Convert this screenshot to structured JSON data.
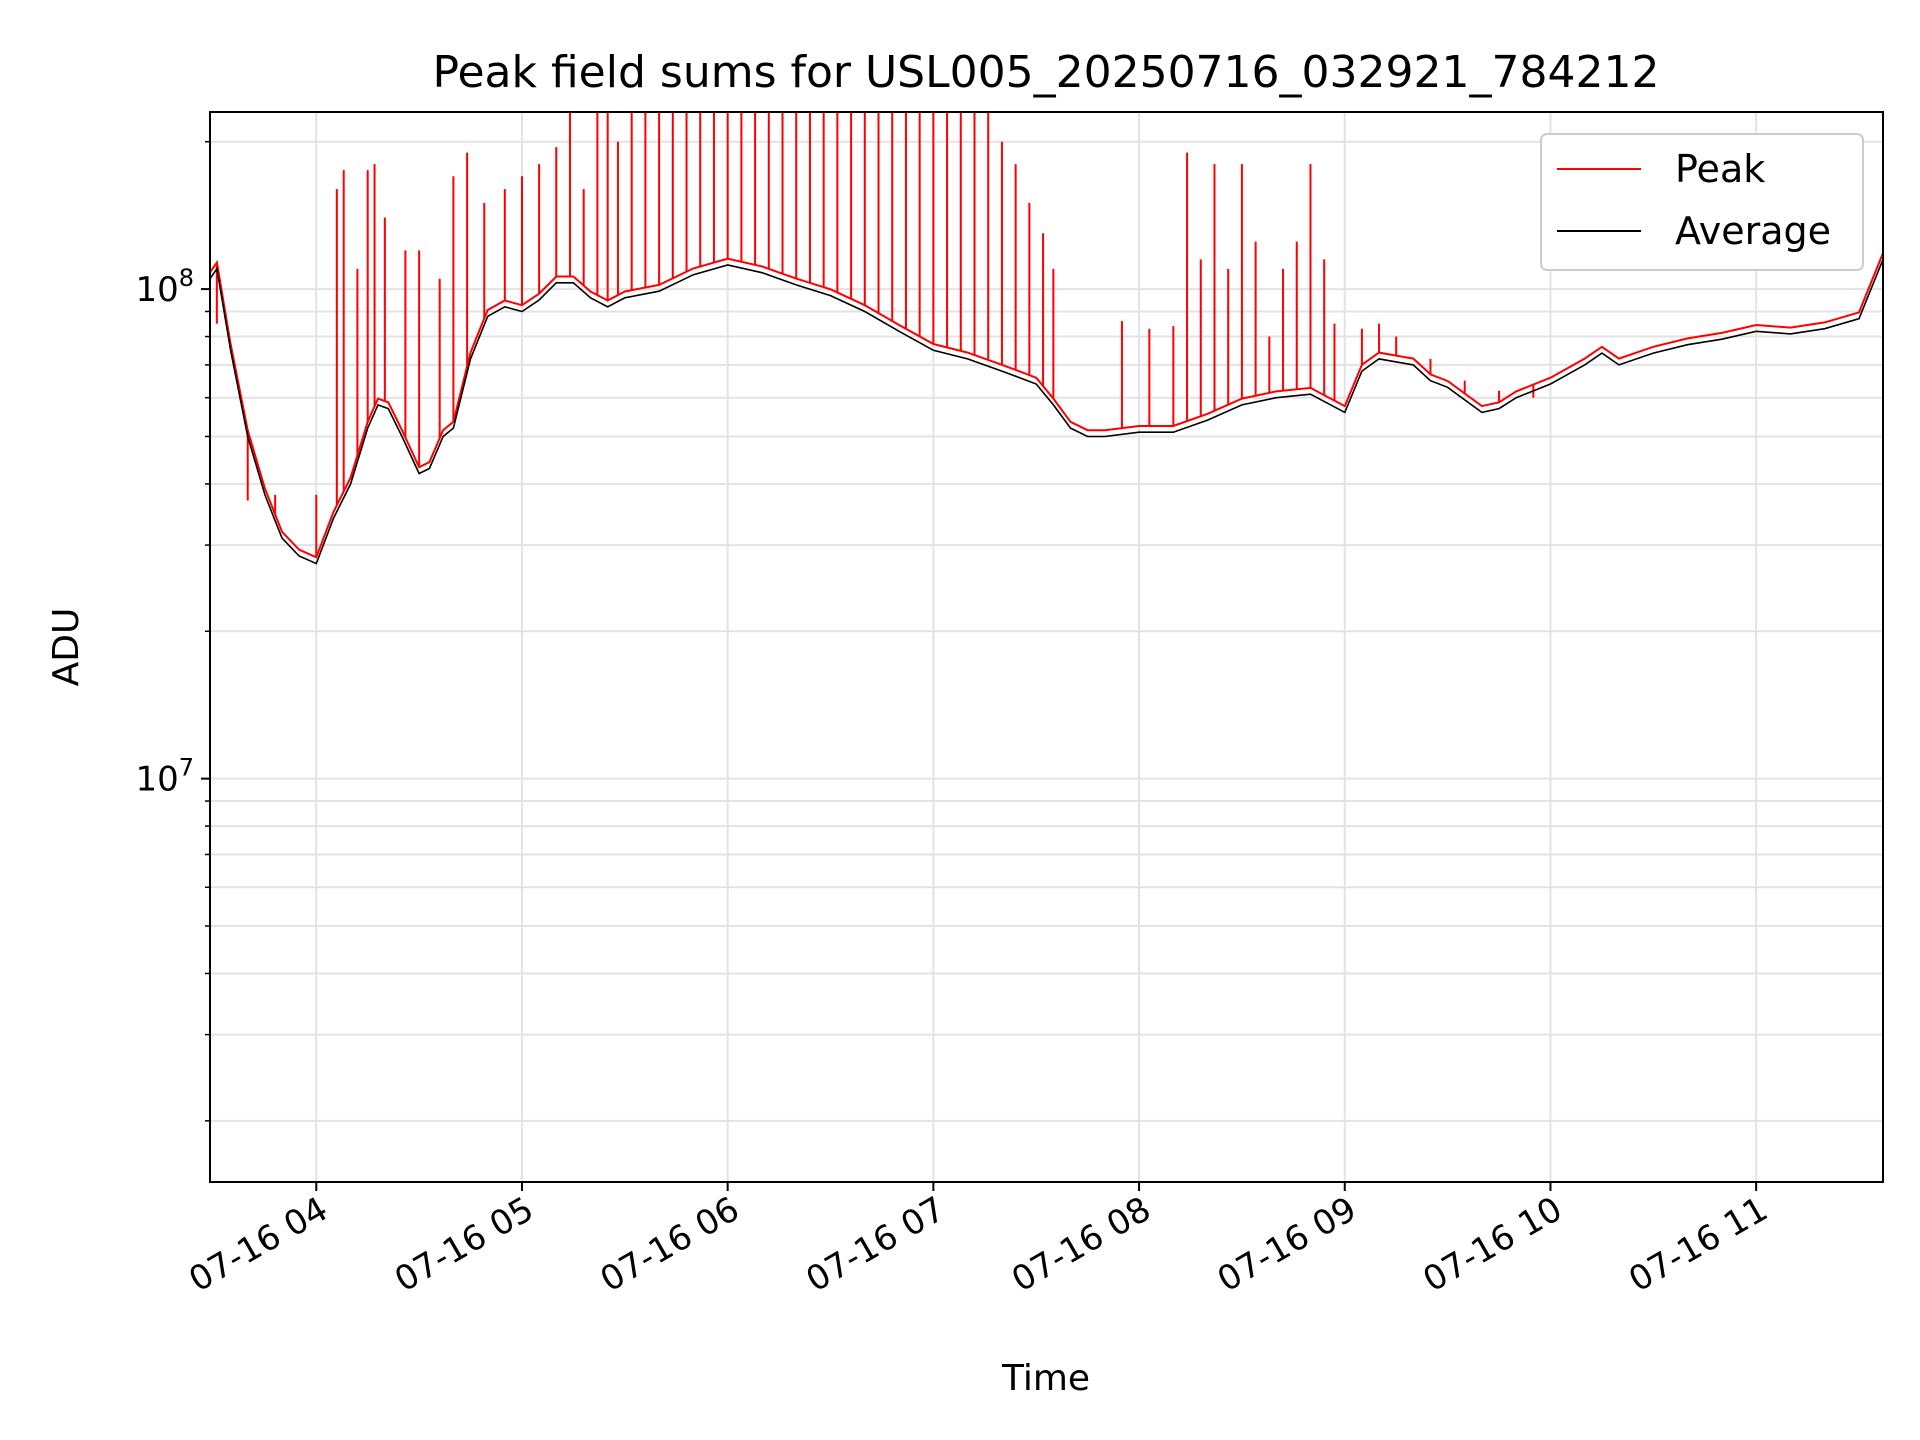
{
  "chart_data": {
    "type": "line",
    "title": "Peak field sums for USL005_20250716_032921_784212",
    "xlabel": "Time",
    "ylabel": "ADU",
    "yscale": "log",
    "ylim": [
      1500000,
      230000000
    ],
    "xlim": [
      "07-16 03:29",
      "07-16 11:37"
    ],
    "grid": true,
    "legend": "top-right",
    "x_ticks": [
      "07-16 04",
      "07-16 05",
      "07-16 06",
      "07-16 07",
      "07-16 08",
      "07-16 09",
      "07-16 10",
      "07-16 11"
    ],
    "y_tick_major": [
      {
        "value": 10000000,
        "base": "10",
        "exp": "7"
      },
      {
        "value": 100000000,
        "base": "10",
        "exp": "8"
      }
    ],
    "y_minor_ticks": [
      2000000,
      3000000,
      4000000,
      5000000,
      6000000,
      7000000,
      8000000,
      9000000,
      20000000,
      30000000,
      40000000,
      50000000,
      60000000,
      70000000,
      80000000,
      90000000,
      200000000
    ],
    "series": [
      {
        "name": "Average",
        "color": "#000000",
        "x": [
          "07-16 03:29",
          "07-16 03:31",
          "07-16 03:35",
          "07-16 03:40",
          "07-16 03:45",
          "07-16 03:50",
          "07-16 03:55",
          "07-16 04:00",
          "07-16 04:05",
          "07-16 04:10",
          "07-16 04:15",
          "07-16 04:18",
          "07-16 04:21",
          "07-16 04:25",
          "07-16 04:30",
          "07-16 04:33",
          "07-16 04:37",
          "07-16 04:40",
          "07-16 04:45",
          "07-16 04:50",
          "07-16 04:55",
          "07-16 05:00",
          "07-16 05:05",
          "07-16 05:10",
          "07-16 05:15",
          "07-16 05:20",
          "07-16 05:25",
          "07-16 05:30",
          "07-16 05:40",
          "07-16 05:50",
          "07-16 06:00",
          "07-16 06:10",
          "07-16 06:20",
          "07-16 06:30",
          "07-16 06:40",
          "07-16 06:50",
          "07-16 07:00",
          "07-16 07:10",
          "07-16 07:20",
          "07-16 07:30",
          "07-16 07:35",
          "07-16 07:40",
          "07-16 07:45",
          "07-16 07:50",
          "07-16 08:00",
          "07-16 08:10",
          "07-16 08:20",
          "07-16 08:30",
          "07-16 08:40",
          "07-16 08:50",
          "07-16 09:00",
          "07-16 09:05",
          "07-16 09:10",
          "07-16 09:15",
          "07-16 09:20",
          "07-16 09:25",
          "07-16 09:30",
          "07-16 09:40",
          "07-16 09:45",
          "07-16 09:50",
          "07-16 10:00",
          "07-16 10:10",
          "07-16 10:15",
          "07-16 10:20",
          "07-16 10:30",
          "07-16 10:40",
          "07-16 10:50",
          "07-16 11:00",
          "07-16 11:10",
          "07-16 11:20",
          "07-16 11:30",
          "07-16 11:37"
        ],
        "values": [
          105000000,
          110000000,
          75000000,
          50000000,
          38000000,
          31000000,
          28500000,
          27500000,
          34000000,
          40000000,
          52000000,
          58000000,
          57000000,
          50000000,
          42000000,
          43000000,
          50000000,
          52000000,
          72000000,
          88000000,
          92000000,
          90000000,
          95000000,
          103000000,
          103000000,
          96000000,
          92000000,
          96000000,
          99000000,
          107000000,
          112000000,
          108000000,
          102000000,
          97000000,
          90000000,
          82000000,
          75000000,
          72000000,
          68000000,
          64000000,
          58000000,
          52000000,
          50000000,
          50000000,
          51000000,
          51000000,
          54000000,
          58000000,
          60000000,
          61000000,
          56000000,
          68000000,
          72000000,
          71000000,
          70000000,
          65000000,
          63000000,
          56000000,
          57000000,
          60000000,
          64000000,
          70000000,
          74000000,
          70000000,
          74000000,
          77000000,
          79000000,
          82000000,
          81000000,
          83000000,
          87000000,
          115000000
        ]
      },
      {
        "name": "Peak",
        "color": "#ff0000",
        "x": [
          "07-16 03:31",
          "07-16 03:40",
          "07-16 03:48",
          "07-16 04:00",
          "07-16 04:06",
          "07-16 04:08",
          "07-16 04:12",
          "07-16 04:15",
          "07-16 04:17",
          "07-16 04:20",
          "07-16 04:26",
          "07-16 04:30",
          "07-16 04:36",
          "07-16 04:40",
          "07-16 04:44",
          "07-16 04:49",
          "07-16 04:55",
          "07-16 05:00",
          "07-16 05:05",
          "07-16 05:10",
          "07-16 05:14",
          "07-16 05:18",
          "07-16 05:22",
          "07-16 05:25",
          "07-16 05:28",
          "07-16 05:32",
          "07-16 05:36",
          "07-16 05:40",
          "07-16 05:44",
          "07-16 05:48",
          "07-16 05:52",
          "07-16 05:56",
          "07-16 06:00",
          "07-16 06:04",
          "07-16 06:08",
          "07-16 06:12",
          "07-16 06:16",
          "07-16 06:20",
          "07-16 06:24",
          "07-16 06:28",
          "07-16 06:32",
          "07-16 06:36",
          "07-16 06:40",
          "07-16 06:44",
          "07-16 06:48",
          "07-16 06:52",
          "07-16 06:56",
          "07-16 07:00",
          "07-16 07:04",
          "07-16 07:08",
          "07-16 07:12",
          "07-16 07:16",
          "07-16 07:20",
          "07-16 07:24",
          "07-16 07:28",
          "07-16 07:32",
          "07-16 07:35",
          "07-16 07:55",
          "07-16 08:03",
          "07-16 08:10",
          "07-16 08:14",
          "07-16 08:18",
          "07-16 08:22",
          "07-16 08:26",
          "07-16 08:30",
          "07-16 08:34",
          "07-16 08:38",
          "07-16 08:42",
          "07-16 08:46",
          "07-16 08:50",
          "07-16 08:54",
          "07-16 08:57",
          "07-16 09:05",
          "07-16 09:10",
          "07-16 09:15",
          "07-16 09:25",
          "07-16 09:35",
          "07-16 09:45",
          "07-16 09:55"
        ],
        "values": [
          85000000,
          37000000,
          38000000,
          38000000,
          160000000,
          175000000,
          110000000,
          175000000,
          180000000,
          140000000,
          120000000,
          120000000,
          105000000,
          170000000,
          190000000,
          150000000,
          160000000,
          170000000,
          180000000,
          195000000,
          230000000,
          160000000,
          230000000,
          230000000,
          200000000,
          230000000,
          230000000,
          230000000,
          230000000,
          230000000,
          230000000,
          230000000,
          230000000,
          230000000,
          230000000,
          230000000,
          230000000,
          230000000,
          230000000,
          230000000,
          230000000,
          230000000,
          230000000,
          230000000,
          230000000,
          230000000,
          230000000,
          230000000,
          230000000,
          230000000,
          230000000,
          230000000,
          200000000,
          180000000,
          150000000,
          130000000,
          110000000,
          86000000,
          83000000,
          84000000,
          190000000,
          115000000,
          180000000,
          110000000,
          180000000,
          125000000,
          80000000,
          110000000,
          125000000,
          180000000,
          115000000,
          85000000,
          83000000,
          85000000,
          80000000,
          72000000,
          65000000,
          62000000,
          60000000
        ]
      }
    ]
  }
}
